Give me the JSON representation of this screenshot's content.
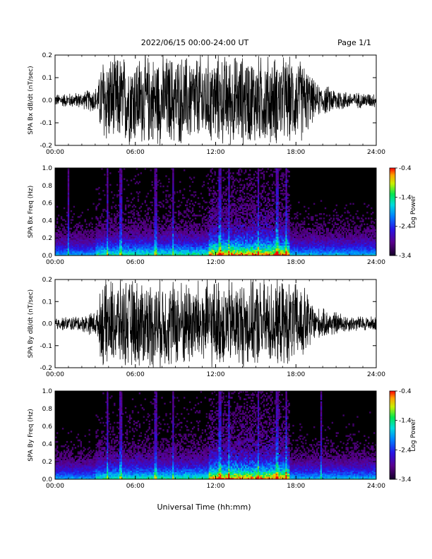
{
  "header": {
    "title": "2022/06/15  00:00-24:00 UT",
    "page": "Page 1/1"
  },
  "xaxis_title": "Universal Time (hh:mm)",
  "colorbar_label": "Log Power",
  "chart_data": [
    {
      "type": "line",
      "ylabel": "SPA Bx dB/dt (nT/sec)",
      "xlim": [
        0,
        24
      ],
      "ylim": [
        -0.2,
        0.2
      ],
      "x_ticks": [
        "00:00",
        "06:00",
        "12:00",
        "18:00",
        "24:00"
      ],
      "y_ticks": [
        "-0.2",
        "-0.1",
        "0.0",
        "0.1",
        "0.2"
      ],
      "envelope": [
        {
          "t": 0,
          "amp": 0.03
        },
        {
          "t": 2,
          "amp": 0.04
        },
        {
          "t": 3.2,
          "amp": 0.07
        },
        {
          "t": 3.5,
          "amp": 0.22
        },
        {
          "t": 9,
          "amp": 0.22
        },
        {
          "t": 12,
          "amp": 0.22
        },
        {
          "t": 16,
          "amp": 0.22
        },
        {
          "t": 18.5,
          "amp": 0.2
        },
        {
          "t": 19.5,
          "amp": 0.08
        },
        {
          "t": 21,
          "amp": 0.06
        },
        {
          "t": 22,
          "amp": 0.04
        },
        {
          "t": 24,
          "amp": 0.035
        }
      ]
    },
    {
      "type": "heatmap",
      "ylabel": "SPA Bx Freq (Hz)",
      "xlim": [
        0,
        24
      ],
      "ylim": [
        0,
        1
      ],
      "x_ticks": [
        "00:00",
        "06:00",
        "12:00",
        "18:00",
        "24:00"
      ],
      "y_ticks": [
        "0.0",
        "0.2",
        "0.4",
        "0.6",
        "0.8",
        "1.0"
      ],
      "color_range": [
        -3.4,
        -0.4
      ],
      "colorbar_ticks": [
        "-0.4",
        "-1.4",
        "-2.4",
        "-3.4"
      ],
      "activity": [
        {
          "t0": 0,
          "t1": 3,
          "level": 0.15
        },
        {
          "t0": 3,
          "t1": 11.5,
          "level": 0.35
        },
        {
          "t0": 11.5,
          "t1": 17.5,
          "level": 0.7
        },
        {
          "t0": 17.5,
          "t1": 24,
          "level": 0.2
        }
      ],
      "bright_lines": [
        1.0,
        3.9,
        4.9,
        7.5,
        8.8,
        12.3,
        13.0,
        15.2,
        16.6,
        17.3
      ]
    },
    {
      "type": "line",
      "ylabel": "SPA By dB/dt (nT/sec)",
      "xlim": [
        0,
        24
      ],
      "ylim": [
        -0.2,
        0.2
      ],
      "x_ticks": [
        "00:00",
        "06:00",
        "12:00",
        "18:00",
        "24:00"
      ],
      "y_ticks": [
        "-0.2",
        "-0.1",
        "0.0",
        "0.1",
        "0.2"
      ],
      "envelope": [
        {
          "t": 0,
          "amp": 0.03
        },
        {
          "t": 2,
          "amp": 0.04
        },
        {
          "t": 3.2,
          "amp": 0.07
        },
        {
          "t": 3.5,
          "amp": 0.22
        },
        {
          "t": 9,
          "amp": 0.22
        },
        {
          "t": 12,
          "amp": 0.22
        },
        {
          "t": 16,
          "amp": 0.22
        },
        {
          "t": 18.5,
          "amp": 0.2
        },
        {
          "t": 19.5,
          "amp": 0.08
        },
        {
          "t": 21,
          "amp": 0.06
        },
        {
          "t": 22,
          "amp": 0.04
        },
        {
          "t": 24,
          "amp": 0.035
        }
      ]
    },
    {
      "type": "heatmap",
      "ylabel": "SPA By Freq (Hz)",
      "xlim": [
        0,
        24
      ],
      "ylim": [
        0,
        1
      ],
      "x_ticks": [
        "00:00",
        "06:00",
        "12:00",
        "18:00",
        "24:00"
      ],
      "y_ticks": [
        "0.0",
        "0.2",
        "0.4",
        "0.6",
        "0.8",
        "1.0"
      ],
      "color_range": [
        -3.4,
        -0.4
      ],
      "colorbar_ticks": [
        "-0.4",
        "-1.4",
        "-2.4",
        "-3.4"
      ],
      "activity": [
        {
          "t0": 0,
          "t1": 3,
          "level": 0.15
        },
        {
          "t0": 3,
          "t1": 11.5,
          "level": 0.35
        },
        {
          "t0": 11.5,
          "t1": 17.5,
          "level": 0.7
        },
        {
          "t0": 17.5,
          "t1": 24,
          "level": 0.2
        }
      ],
      "bright_lines": [
        3.9,
        4.9,
        7.5,
        8.8,
        12.3,
        13.0,
        15.2,
        16.6,
        17.3,
        19.9
      ]
    }
  ]
}
